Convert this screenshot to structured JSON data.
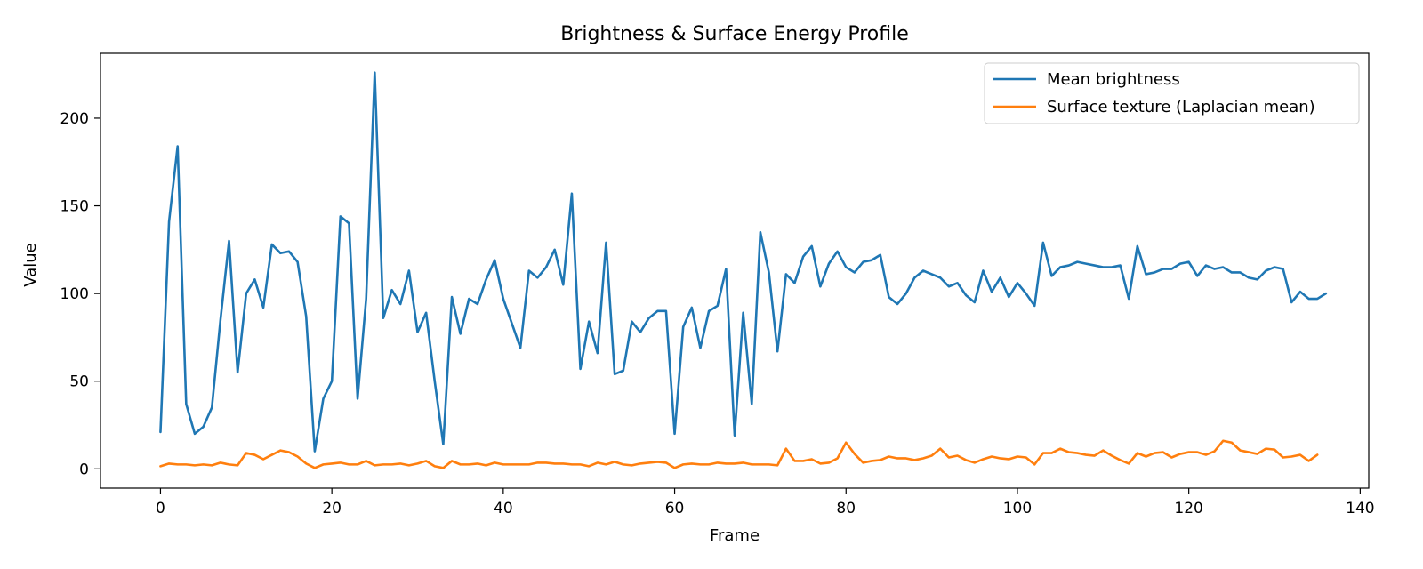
{
  "chart_data": {
    "type": "line",
    "title": "Brightness & Surface Energy Profile",
    "xlabel": "Frame",
    "ylabel": "Value",
    "xlim": [
      -7,
      141
    ],
    "ylim": [
      -11,
      237
    ],
    "xticks": [
      0,
      20,
      40,
      60,
      80,
      100,
      120,
      140
    ],
    "yticks": [
      0,
      50,
      100,
      150,
      200
    ],
    "grid": false,
    "legend_position": "top-right",
    "series": [
      {
        "name": "Mean brightness",
        "color": "#1f77b4",
        "values": [
          21,
          141,
          184,
          37,
          20,
          24,
          35,
          85,
          130,
          55,
          100,
          108,
          92,
          128,
          123,
          124,
          118,
          87,
          10,
          40,
          50,
          144,
          140,
          40,
          97,
          226,
          86,
          102,
          94,
          113,
          78,
          89,
          50,
          14,
          98,
          77,
          97,
          94,
          108,
          119,
          97,
          83,
          69,
          113,
          109,
          115,
          125,
          105,
          157,
          57,
          84,
          66,
          129,
          54,
          56,
          84,
          78,
          86,
          90,
          90,
          20,
          81,
          92,
          69,
          90,
          93,
          114,
          19,
          89,
          37,
          135,
          112,
          67,
          111,
          106,
          121,
          127,
          104,
          117,
          124,
          115,
          112,
          118,
          119,
          122,
          98,
          94,
          100,
          109,
          113,
          111,
          109,
          104,
          106,
          99,
          95,
          113,
          101,
          109,
          98,
          106,
          100,
          93,
          129,
          110,
          115,
          116,
          118,
          117,
          116,
          115,
          115,
          116,
          97,
          127,
          111,
          112,
          114,
          114,
          117,
          118,
          110,
          116,
          114,
          115,
          112,
          112,
          109,
          108,
          113,
          115,
          114,
          95,
          101,
          97,
          97,
          100
        ]
      },
      {
        "name": "Surface texture (Laplacian mean)",
        "color": "#ff7f0e",
        "values": [
          1.5,
          3,
          2.5,
          2.5,
          2,
          2.5,
          2,
          3.5,
          2.5,
          2,
          9,
          8,
          5.5,
          8,
          10.5,
          9.5,
          7,
          3,
          0.5,
          2.5,
          3,
          3.5,
          2.5,
          2.5,
          4.5,
          2,
          2.5,
          2.5,
          3,
          2,
          3,
          4.5,
          1.5,
          0.5,
          4.5,
          2.5,
          2.5,
          3,
          2,
          3.5,
          2.5,
          2.5,
          2.5,
          2.5,
          3.5,
          3.5,
          3,
          3,
          2.5,
          2.5,
          1.5,
          3.5,
          2.5,
          4,
          2.5,
          2,
          3,
          3.5,
          4,
          3.5,
          0.5,
          2.5,
          3,
          2.5,
          2.5,
          3.5,
          3,
          3,
          3.5,
          2.5,
          2.5,
          2.5,
          2,
          11.5,
          4.5,
          4.5,
          5.5,
          3,
          3.5,
          6,
          15,
          8.5,
          3.5,
          4.5,
          5,
          7,
          6,
          6,
          5,
          6,
          7.5,
          11.5,
          6.5,
          7.5,
          5,
          3.5,
          5.5,
          7,
          6,
          5.5,
          7,
          6.5,
          2.5,
          9,
          9,
          11.5,
          9.5,
          9,
          8,
          7.5,
          10.5,
          7.5,
          5,
          3,
          9,
          7,
          9,
          9.5,
          6.5,
          8.5,
          9.5,
          9.5,
          8,
          10,
          16,
          15,
          10.5,
          9.5,
          8.5,
          11.5,
          11,
          6.5,
          7,
          8,
          4.5,
          8
        ]
      }
    ]
  }
}
